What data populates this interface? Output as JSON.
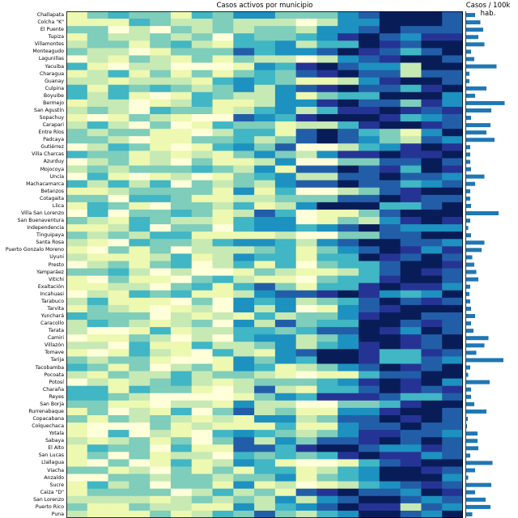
{
  "heatmap_title": "Casos activos por municipio",
  "bars_title": "Casos / 100k hab.",
  "colors": [
    "#ffffd9",
    "#edf8b1",
    "#c7e9b4",
    "#7fcdbb",
    "#41b6c4",
    "#1d91c0",
    "#225ea8",
    "#253494",
    "#081d58"
  ],
  "bar_color": "#1f77b4",
  "chart_data": [
    {
      "type": "heatmap",
      "title": "Casos activos por municipio",
      "xlabel": "",
      "ylabel": "",
      "colormap": "YlGnBu",
      "value_range": [
        0,
        1
      ],
      "categories": [
        "Challapata",
        "Colcha \"K\"",
        "El Puente",
        "Tupiza",
        "Villamontes",
        "Monteagudo",
        "Lagunillas",
        "Yacuiba",
        "Charagua",
        "Guanay",
        "Culpina",
        "Boyuibe",
        "Bermejo",
        "San Agustín",
        "Sopachuy",
        "Carapari",
        "Entre Ríos",
        "Padcaya",
        "Gutiérrez",
        "Villa Charcas",
        "Azurduy",
        "Mojocoya",
        "Uncía",
        "Machacamarca",
        "Betanzos",
        "Cotagaita",
        "Llica",
        "Villa San Lorenzo",
        "San Buenaventura",
        "Independencia",
        "Tinguipaya",
        "Santa Rosa",
        "Puerto Gonzalo Moreno",
        "Uyuni",
        "Presto",
        "Yamparáez",
        "Vitichi",
        "Exaltación",
        "Incahuasi",
        "Tarabuco",
        "Tarvita",
        "Yunchará",
        "Caracollo",
        "Tarata",
        "Camiri",
        "Villazón",
        "Tomave",
        "Tarija",
        "Tacobamba",
        "Pocoata",
        "Potosí",
        "Charaña",
        "Reyes",
        "San Borja",
        "Rurrenabaque",
        "Copacabana",
        "Colquechaca",
        "Yotala",
        "Sabaya",
        "El Alto",
        "San Lucas",
        "Llallagua",
        "Viacha",
        "Anzaldo",
        "Sucre",
        "Caiza \"D\"",
        "San Lorenzo",
        "Puerto Rico",
        "Puna"
      ],
      "n_columns": 19,
      "row_profiles": [
        {
          "name": "Challapata",
          "early": 0.15,
          "peak_col": 17,
          "peak": 0.95
        },
        {
          "name": "Lagunillas",
          "early": 0.45,
          "peak_col": 15,
          "peak": 0.95
        },
        {
          "name": "Yacuiba",
          "early": 0.3,
          "peak_col": 12,
          "peak": 1.0
        },
        {
          "name": "Mojocoya",
          "early": 0.55,
          "peak_col": 13,
          "peak": 0.95
        },
        {
          "name": "Incahuasi",
          "early": 0.2,
          "peak_col": 13,
          "peak": 1.0
        },
        {
          "name": "Tarija",
          "early": 0.35,
          "peak_col": 12,
          "peak": 1.0
        },
        {
          "name": "Llallagua",
          "early": 0.35,
          "peak_col": 11,
          "peak": 1.0
        }
      ],
      "note_columns": "Columns are unlabeled time periods"
    },
    {
      "type": "bar",
      "orientation": "horizontal",
      "title": "Casos / 100k hab.",
      "categories": [
        "Challapata",
        "Colcha \"K\"",
        "El Puente",
        "Tupiza",
        "Villamontes",
        "Monteagudo",
        "Lagunillas",
        "Yacuiba",
        "Charagua",
        "Guanay",
        "Culpina",
        "Boyuibe",
        "Bermejo",
        "San Agustín",
        "Sopachuy",
        "Carapari",
        "Entre Ríos",
        "Padcaya",
        "Gutiérrez",
        "Villa Charcas",
        "Azurduy",
        "Mojocoya",
        "Uncía",
        "Machacamarca",
        "Betanzos",
        "Cotagaita",
        "Llica",
        "Villa San Lorenzo",
        "San Buenaventura",
        "Independencia",
        "Tinguipaya",
        "Santa Rosa",
        "Puerto Gonzalo Moreno",
        "Uyuni",
        "Presto",
        "Yamparáez",
        "Vitichi",
        "Exaltación",
        "Incahuasi",
        "Tarabuco",
        "Tarvita",
        "Yunchará",
        "Caracollo",
        "Tarata",
        "Camiri",
        "Villazón",
        "Tomave",
        "Tarija",
        "Tacobamba",
        "Pocoata",
        "Potosí",
        "Charaña",
        "Reyes",
        "San Borja",
        "Rurrenabaque",
        "Copacabana",
        "Colquechaca",
        "Yotala",
        "Sabaya",
        "El Alto",
        "San Lucas",
        "Llallagua",
        "Viacha",
        "Anzaldo",
        "Sucre",
        "Caiza \"D\"",
        "San Lorenzo",
        "Puerto Rico",
        "Puna"
      ],
      "values": [
        0.22,
        0.35,
        0.42,
        0.3,
        0.45,
        0.12,
        0.2,
        0.75,
        0.08,
        0.08,
        0.5,
        0.22,
        0.95,
        0.62,
        0.12,
        0.6,
        0.5,
        0.7,
        0.1,
        0.1,
        0.1,
        0.12,
        0.45,
        0.22,
        0.1,
        0.1,
        0.12,
        0.8,
        0.1,
        0.05,
        0.12,
        0.45,
        0.38,
        0.15,
        0.2,
        0.25,
        0.3,
        0.1,
        0.08,
        0.1,
        0.12,
        0.22,
        0.12,
        0.18,
        0.55,
        0.45,
        0.25,
        0.92,
        0.1,
        0.05,
        0.58,
        0.12,
        0.12,
        0.2,
        0.5,
        0.04,
        0.02,
        0.28,
        0.28,
        0.3,
        0.1,
        0.65,
        0.22,
        0.05,
        0.62,
        0.22,
        0.48,
        0.6,
        0.15
      ],
      "xlim": [
        0,
        1
      ]
    }
  ]
}
